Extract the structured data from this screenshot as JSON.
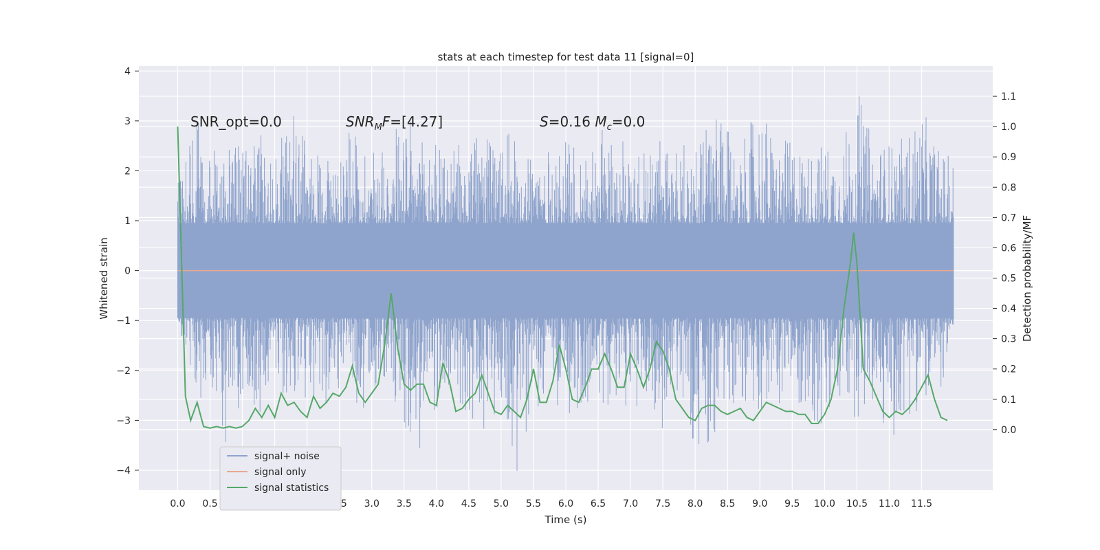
{
  "chart_data": {
    "type": "line",
    "title": "stats at each timestep for test data 11 [signal=0]",
    "xlabel": "Time (s)",
    "ylabel": "Whitened strain",
    "ylabel_right": "Detection probability/MF",
    "xlim": [
      -0.6,
      12.6
    ],
    "ylim": [
      -4.4,
      4.1
    ],
    "ylim_right": [
      -0.2,
      1.2
    ],
    "xticks": [
      "0.0",
      "0.5",
      "1.0",
      "1.5",
      "2.0",
      "2.5",
      "3.0",
      "3.5",
      "4.0",
      "4.5",
      "5.0",
      "5.5",
      "6.0",
      "6.5",
      "7.0",
      "7.5",
      "8.0",
      "8.5",
      "9.0",
      "9.5",
      "10.0",
      "10.5",
      "11.0",
      "11.5"
    ],
    "yticks_left": [
      "4",
      "3",
      "2",
      "1",
      "0",
      "−1",
      "−2",
      "−3",
      "−4"
    ],
    "yticks_right": [
      "1.1",
      "1.0",
      "0.9",
      "0.8",
      "0.7",
      "0.6",
      "0.5",
      "0.4",
      "0.3",
      "0.2",
      "0.1",
      "0.0"
    ],
    "grid": true,
    "legend_position": "lower-left",
    "annotations": [
      {
        "text": "SNR_opt=0.0",
        "x": 0.2,
        "y": 2.95
      },
      {
        "text": "SNR_MF=[4.27]",
        "x": 2.6,
        "y": 2.95
      },
      {
        "text": "S=0.16   M_c=0.0",
        "x": 5.6,
        "y": 2.95
      }
    ],
    "series": [
      {
        "name": "signal+ noise",
        "axis": "left",
        "color": "#8fa4cc",
        "x_range": [
          0.0,
          12.0
        ],
        "envelope": {
          "x": [
            0.0,
            0.25,
            0.5,
            0.75,
            1.0,
            1.25,
            1.5,
            1.75,
            2.0,
            2.25,
            2.5,
            2.75,
            3.0,
            3.25,
            3.5,
            3.75,
            4.0,
            4.25,
            4.5,
            4.75,
            5.0,
            5.25,
            5.5,
            5.75,
            6.0,
            6.25,
            6.5,
            6.75,
            7.0,
            7.25,
            7.5,
            7.75,
            8.0,
            8.25,
            8.5,
            8.75,
            9.0,
            9.25,
            9.5,
            9.75,
            10.0,
            10.25,
            10.5,
            10.75,
            11.0,
            11.25,
            11.5,
            11.75,
            12.0
          ],
          "upper": [
            2.2,
            3.2,
            2.4,
            2.6,
            2.5,
            2.9,
            2.3,
            3.3,
            2.5,
            2.4,
            2.6,
            2.9,
            2.5,
            2.8,
            3.3,
            2.6,
            2.7,
            2.4,
            2.8,
            2.7,
            2.6,
            2.9,
            2.5,
            2.4,
            2.6,
            2.5,
            2.9,
            2.6,
            2.7,
            2.5,
            2.8,
            2.6,
            2.5,
            3.3,
            2.8,
            2.6,
            3.5,
            2.5,
            2.7,
            2.4,
            2.6,
            2.5,
            3.7,
            2.6,
            2.6,
            2.7,
            3.3,
            2.5,
            2.2
          ],
          "lower": [
            -1.0,
            -2.5,
            -2.8,
            -3.5,
            -2.6,
            -2.9,
            -2.4,
            -3.0,
            -2.5,
            -2.7,
            -2.4,
            -2.9,
            -2.6,
            -2.4,
            -3.2,
            -3.7,
            -2.8,
            -2.6,
            -2.9,
            -3.2,
            -2.7,
            -4.1,
            -2.8,
            -2.6,
            -2.9,
            -2.7,
            -2.6,
            -3.0,
            -2.7,
            -2.8,
            -3.2,
            -2.6,
            -3.7,
            -3.7,
            -2.9,
            -2.6,
            -2.8,
            -2.7,
            -2.6,
            -2.9,
            -3.6,
            -2.7,
            -3.0,
            -2.8,
            -3.7,
            -2.9,
            -2.8,
            -2.7,
            -1.2
          ]
        }
      },
      {
        "name": "signal only",
        "axis": "left",
        "color": "#e8a88e",
        "x": [
          0.0,
          12.0
        ],
        "values": [
          0.0,
          0.0
        ]
      },
      {
        "name": "signal statistics",
        "axis": "right",
        "color": "#55a868",
        "x": [
          0.0,
          0.12,
          0.2,
          0.3,
          0.4,
          0.5,
          0.6,
          0.7,
          0.8,
          0.9,
          1.0,
          1.1,
          1.2,
          1.3,
          1.4,
          1.5,
          1.6,
          1.7,
          1.8,
          1.9,
          2.0,
          2.1,
          2.2,
          2.3,
          2.4,
          2.5,
          2.6,
          2.7,
          2.8,
          2.9,
          3.0,
          3.1,
          3.2,
          3.3,
          3.4,
          3.5,
          3.6,
          3.7,
          3.8,
          3.9,
          4.0,
          4.1,
          4.2,
          4.3,
          4.4,
          4.5,
          4.6,
          4.7,
          4.8,
          4.9,
          5.0,
          5.1,
          5.2,
          5.3,
          5.4,
          5.5,
          5.6,
          5.7,
          5.8,
          5.9,
          6.0,
          6.1,
          6.2,
          6.3,
          6.4,
          6.5,
          6.6,
          6.7,
          6.8,
          6.9,
          7.0,
          7.1,
          7.2,
          7.3,
          7.4,
          7.5,
          7.6,
          7.7,
          7.8,
          7.9,
          8.0,
          8.1,
          8.2,
          8.3,
          8.4,
          8.5,
          8.6,
          8.7,
          8.8,
          8.9,
          9.0,
          9.1,
          9.2,
          9.3,
          9.4,
          9.5,
          9.6,
          9.7,
          9.8,
          9.9,
          10.0,
          10.1,
          10.2,
          10.3,
          10.4,
          10.45,
          10.5,
          10.6,
          10.7,
          10.8,
          10.9,
          11.0,
          11.1,
          11.2,
          11.3,
          11.4,
          11.5,
          11.6,
          11.7,
          11.8,
          11.9
        ],
        "values": [
          1.0,
          0.11,
          0.03,
          0.09,
          0.01,
          0.005,
          0.01,
          0.005,
          0.01,
          0.005,
          0.01,
          0.03,
          0.07,
          0.04,
          0.08,
          0.04,
          0.12,
          0.08,
          0.09,
          0.06,
          0.04,
          0.11,
          0.07,
          0.09,
          0.12,
          0.11,
          0.14,
          0.21,
          0.12,
          0.09,
          0.12,
          0.15,
          0.28,
          0.45,
          0.27,
          0.15,
          0.13,
          0.15,
          0.15,
          0.09,
          0.08,
          0.22,
          0.16,
          0.06,
          0.07,
          0.1,
          0.12,
          0.18,
          0.12,
          0.06,
          0.05,
          0.08,
          0.06,
          0.04,
          0.1,
          0.2,
          0.09,
          0.09,
          0.16,
          0.28,
          0.2,
          0.1,
          0.09,
          0.14,
          0.2,
          0.2,
          0.25,
          0.2,
          0.14,
          0.14,
          0.25,
          0.2,
          0.14,
          0.2,
          0.29,
          0.26,
          0.2,
          0.1,
          0.07,
          0.04,
          0.03,
          0.07,
          0.08,
          0.08,
          0.06,
          0.05,
          0.06,
          0.07,
          0.04,
          0.03,
          0.06,
          0.09,
          0.08,
          0.07,
          0.06,
          0.06,
          0.05,
          0.05,
          0.02,
          0.02,
          0.05,
          0.1,
          0.2,
          0.4,
          0.55,
          0.65,
          0.55,
          0.2,
          0.16,
          0.11,
          0.06,
          0.04,
          0.06,
          0.05,
          0.07,
          0.1,
          0.14,
          0.18,
          0.1,
          0.04,
          0.03
        ],
        "stat_baseline": 0.0
      }
    ]
  }
}
